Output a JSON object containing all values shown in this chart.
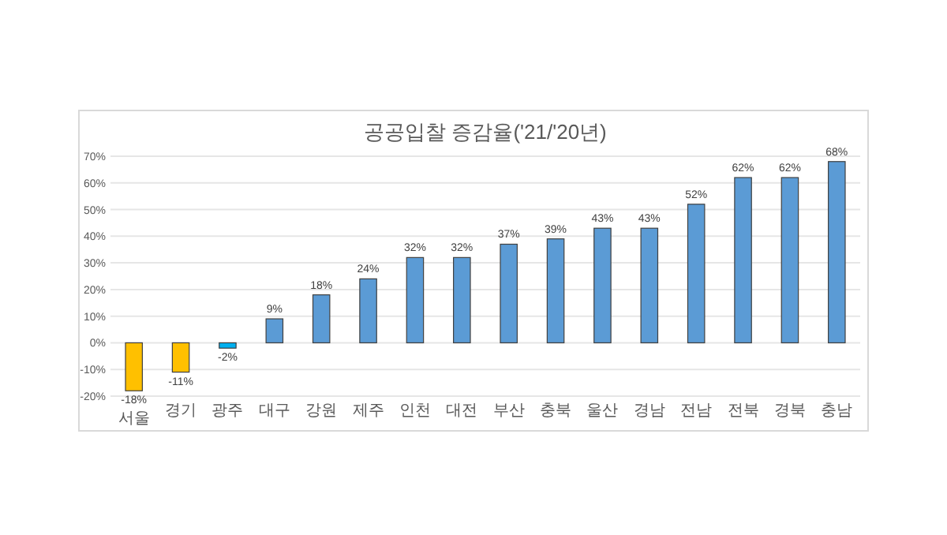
{
  "chart_data": {
    "type": "bar",
    "title": "공공입찰 증감율('21/'20년)",
    "categories": [
      "서울",
      "경기",
      "광주",
      "대구",
      "강원",
      "제주",
      "인천",
      "대전",
      "부산",
      "충북",
      "울산",
      "경남",
      "전남",
      "전북",
      "경북",
      "충남"
    ],
    "values": [
      -18,
      -11,
      -2,
      9,
      18,
      24,
      32,
      32,
      37,
      39,
      43,
      43,
      52,
      62,
      62,
      68
    ],
    "value_labels": [
      "-18%",
      "-11%",
      "-2%",
      "9%",
      "18%",
      "24%",
      "32%",
      "32%",
      "37%",
      "39%",
      "43%",
      "43%",
      "52%",
      "62%",
      "62%",
      "68%"
    ],
    "colors": [
      "#ffc000",
      "#ffc000",
      "#00b0f0",
      "#5b9bd5",
      "#5b9bd5",
      "#5b9bd5",
      "#5b9bd5",
      "#5b9bd5",
      "#5b9bd5",
      "#5b9bd5",
      "#5b9bd5",
      "#5b9bd5",
      "#5b9bd5",
      "#5b9bd5",
      "#5b9bd5",
      "#5b9bd5"
    ],
    "ylim": [
      -20,
      70
    ],
    "yticks": [
      {
        "value": -20,
        "label": "-20%"
      },
      {
        "value": -10,
        "label": "-10%"
      },
      {
        "value": 0,
        "label": "0%"
      },
      {
        "value": 10,
        "label": "10%"
      },
      {
        "value": 20,
        "label": "20%"
      },
      {
        "value": 30,
        "label": "30%"
      },
      {
        "value": 40,
        "label": "40%"
      },
      {
        "value": 50,
        "label": "50%"
      },
      {
        "value": 60,
        "label": "60%"
      },
      {
        "value": 70,
        "label": "70%"
      }
    ],
    "grid": "y"
  }
}
